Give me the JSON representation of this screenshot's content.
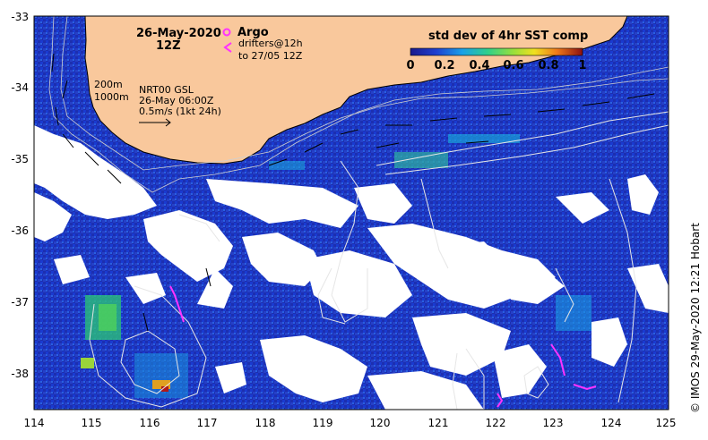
{
  "title": {
    "date": "26-May-2020",
    "time": "12Z"
  },
  "legend_markers": {
    "argo": "Argo",
    "drifters_line1": "drifters@12h",
    "drifters_line2": "to 27/05 12Z",
    "argo_color": "#ff33ff",
    "drifter_color": "#ff33ff"
  },
  "bathymetry_note": {
    "depth1": "200m",
    "depth2": "1000m"
  },
  "altimetry_note": {
    "line1": "NRT00 GSL",
    "line2": "26-May 06:00Z",
    "line3": "0.5m/s (1kt 24h)"
  },
  "colorbar": {
    "title": "std dev of 4hr SST comp",
    "ticks": [
      "0",
      "0.2",
      "0.4",
      "0.6",
      "0.8",
      "1"
    ],
    "range": [
      0,
      1
    ]
  },
  "axes": {
    "lon_ticks": [
      "114",
      "115",
      "116",
      "117",
      "118",
      "119",
      "120",
      "121",
      "122",
      "123",
      "124",
      "125"
    ],
    "lat_ticks": [
      "-33",
      "-34",
      "-35",
      "-36",
      "-37",
      "-38"
    ],
    "lon_range": [
      114,
      125
    ],
    "lat_range": [
      -38.5,
      -33
    ]
  },
  "credit": "© IMOS 29-May-2020 12:21 Hobart",
  "colors": {
    "land": "#f9c89c",
    "cloud": "#ffffff",
    "ocean_deep": "#1a2fa8",
    "contour": "#dddddd"
  }
}
